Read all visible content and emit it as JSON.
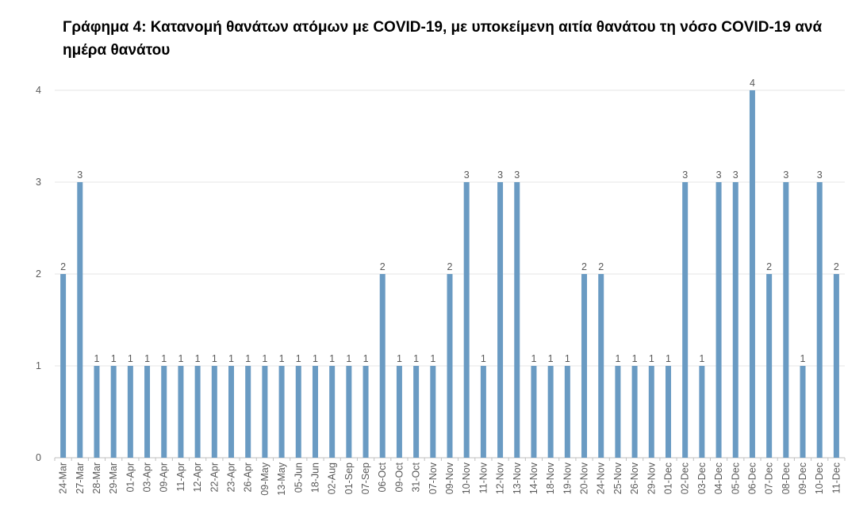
{
  "chart_data": {
    "type": "bar",
    "title": "Γράφημα 4: Κατανομή θανάτων ατόμων με COVID-19, με υποκείμενη αιτία θανάτου τη νόσο COVID-19 ανά ημέρα θανάτου",
    "categories": [
      "24-Mar",
      "27-Mar",
      "28-Mar",
      "29-Mar",
      "01-Apr",
      "03-Apr",
      "09-Apr",
      "11-Apr",
      "12-Apr",
      "22-Apr",
      "23-Apr",
      "26-Apr",
      "09-May",
      "13-May",
      "05-Jun",
      "18-Jun",
      "02-Aug",
      "01-Sep",
      "07-Sep",
      "06-Oct",
      "09-Oct",
      "31-Oct",
      "07-Nov",
      "09-Nov",
      "10-Nov",
      "11-Nov",
      "12-Nov",
      "13-Nov",
      "14-Nov",
      "18-Nov",
      "19-Nov",
      "20-Nov",
      "24-Nov",
      "25-Nov",
      "26-Nov",
      "29-Nov",
      "01-Dec",
      "02-Dec",
      "03-Dec",
      "04-Dec",
      "05-Dec",
      "06-Dec",
      "07-Dec",
      "08-Dec",
      "09-Dec",
      "10-Dec",
      "11-Dec"
    ],
    "values": [
      2,
      3,
      1,
      1,
      1,
      1,
      1,
      1,
      1,
      1,
      1,
      1,
      1,
      1,
      1,
      1,
      1,
      1,
      1,
      2,
      1,
      1,
      1,
      2,
      3,
      1,
      3,
      3,
      1,
      1,
      1,
      2,
      2,
      1,
      1,
      1,
      1,
      3,
      1,
      3,
      3,
      4,
      2,
      3,
      1,
      3,
      2
    ],
    "ylim": [
      0,
      4
    ],
    "yticks": [
      0,
      1,
      2,
      3,
      4
    ],
    "xlabel": "",
    "ylabel": "",
    "data_labels": true,
    "grid": true,
    "legend": "none",
    "bar_color": "#6a9bc3"
  }
}
